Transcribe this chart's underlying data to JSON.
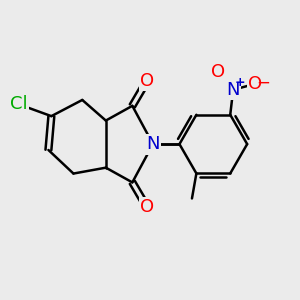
{
  "bg_color": "#ebebeb",
  "bond_color": "#000000",
  "bond_width": 1.8,
  "atom_colors": {
    "O": "#ff0000",
    "N_imide": "#0000cd",
    "N_nitro": "#0000cd",
    "Cl": "#00aa00",
    "C": "#000000"
  },
  "font_size_atom": 13,
  "font_size_charge": 9,
  "figsize": [
    3.0,
    3.0
  ],
  "dpi": 100
}
